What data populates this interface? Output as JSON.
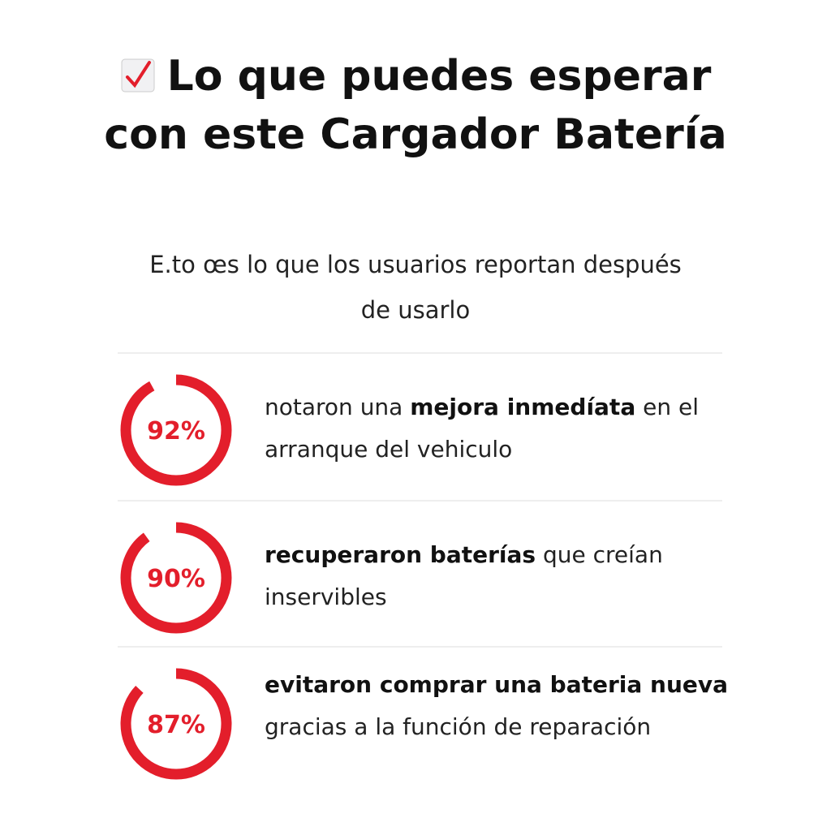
{
  "header": {
    "title": "Lo que puedes esperar con este Cargador Batería",
    "subtitle": "E.to œs lo que los usuarios reportan después de usarlo"
  },
  "ring_color": "#e31e2b",
  "stats": [
    {
      "value": 92,
      "value_label": "92%",
      "text": [
        {
          "text": "notaron una ",
          "bold": false
        },
        {
          "text": "mejora inmedíata",
          "bold": true
        },
        {
          "text": " en el arranque del vehiculo",
          "bold": false
        }
      ]
    },
    {
      "value": 90,
      "value_label": "90%",
      "text": [
        {
          "text": "recuperaron baterías",
          "bold": true
        },
        {
          "text": " que creían inservibles",
          "bold": false
        }
      ]
    },
    {
      "value": 87,
      "value_label": "87%",
      "text": [
        {
          "text": "evitaron comprar una bateria nueva",
          "bold": true
        },
        {
          "text": " gracias a la función de reparación",
          "bold": false
        }
      ]
    }
  ]
}
